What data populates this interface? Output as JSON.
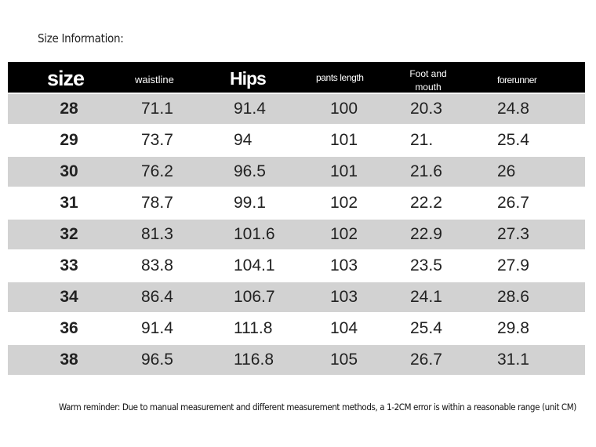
{
  "title": "Size Information:",
  "table": {
    "header": [
      "size",
      "waistline",
      "Hips",
      "pants length",
      "Foot and mouth",
      "forerunner"
    ],
    "rows": [
      [
        "28",
        "71.1",
        "91.4",
        "100",
        "20.3",
        "24.8"
      ],
      [
        "29",
        "73.7",
        "94",
        "101",
        "21.",
        "25.4"
      ],
      [
        "30",
        "76.2",
        "96.5",
        "101",
        "21.6",
        "26"
      ],
      [
        "31",
        "78.7",
        "99.1",
        "102",
        "22.2",
        "26.7"
      ],
      [
        "32",
        "81.3",
        "101.6",
        "102",
        "22.9",
        "27.3"
      ],
      [
        "33",
        "83.8",
        "104.1",
        "103",
        "23.5",
        "27.9"
      ],
      [
        "34",
        "86.4",
        "106.7",
        "103",
        "24.1",
        "28.6"
      ],
      [
        "36",
        "91.4",
        "111.8",
        "104",
        "25.4",
        "29.8"
      ],
      [
        "38",
        "96.5",
        "116.8",
        "105",
        "26.7",
        "31.1"
      ]
    ]
  },
  "footnote": "Warm reminder: Due to manual measurement and different measurement methods, a 1-2CM error is within a reasonable range (unit CM)"
}
